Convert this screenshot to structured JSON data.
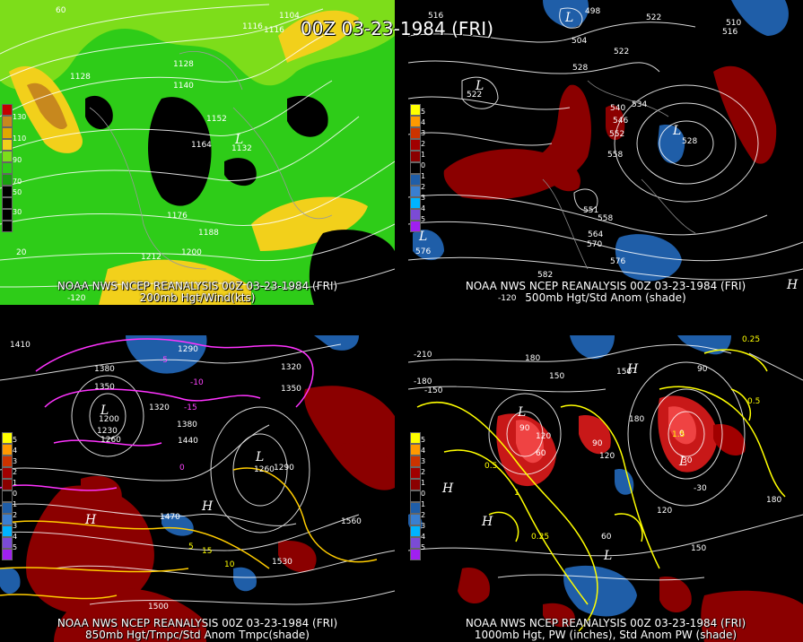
{
  "title": "00Z 03-23-1984 (FRI)",
  "panels": {
    "top_left": {
      "caption_line1": "NOAA NWS NCEP REANALYSIS 00Z 03-23-1984 (FRI)",
      "caption_line2": "200mb Hgt/Wind(kts)",
      "legend": [
        "130",
        "110",
        "90",
        "70",
        "50",
        "30"
      ],
      "contour_labels": [
        "1104",
        "1116",
        "1116",
        "1128",
        "1128",
        "1140",
        "1152",
        "1164",
        "1176",
        "1188",
        "1200",
        "1212",
        "1132"
      ],
      "axis_labels": [
        "60",
        "-120",
        "20"
      ],
      "colors": {
        "wind_low": "#2ecc18",
        "wind_mid": "#7ddd1a",
        "wind_high": "#f2d01b",
        "wind_max": "#c7881e"
      }
    },
    "top_right": {
      "caption_line1": "NOAA NWS NCEP REANALYSIS 00Z 03-23-1984 (FRI)",
      "caption_line2": "500mb Hgt/Std Anom (shade)",
      "legend": [
        "5",
        "4",
        "3",
        "2",
        "1",
        "0",
        "1",
        "2",
        "3",
        "4",
        "5"
      ],
      "contour_labels": [
        "516",
        "498",
        "504",
        "522",
        "510",
        "516",
        "522",
        "528",
        "534",
        "540",
        "546",
        "552",
        "558",
        "564",
        "570",
        "576",
        "582",
        "576",
        "558",
        "551",
        "528",
        "522"
      ],
      "lows": [
        "L",
        "L",
        "L",
        "L"
      ],
      "highs": [
        "H"
      ],
      "axis_labels": [
        "-120"
      ],
      "colors": {
        "pos_anom": "#8b0000",
        "neg_anom": "#1f5ea8"
      }
    },
    "bottom_left": {
      "caption_line1": "NOAA NWS NCEP REANALYSIS 00Z 03-23-1984 (FRI)",
      "caption_line2": "850mb Hgt/Tmpc/Std Anom Tmpc(shade)",
      "legend": [
        "5",
        "4",
        "3",
        "2",
        "1",
        "0",
        "1",
        "2",
        "3",
        "4",
        "5"
      ],
      "contour_labels": [
        "1410",
        "1380",
        "1350",
        "1320",
        "1290",
        "1260",
        "1230",
        "1200",
        "1440",
        "1470",
        "1500",
        "1530",
        "1560",
        "1380",
        "1350",
        "1320",
        "1290",
        "1260"
      ],
      "temp_labels": [
        "-15",
        "-10",
        "-5",
        "0",
        "5",
        "10",
        "15"
      ],
      "lows": [
        "L",
        "L"
      ],
      "highs": [
        "H",
        "H"
      ],
      "colors": {
        "isotherm_cold": "#ff33ff",
        "isotherm_warm": "#ffcc00"
      }
    },
    "bottom_right": {
      "caption_line1": "NOAA NWS NCEP REANALYSIS 00Z 03-23-1984 (FRI)",
      "caption_line2": "1000mb Hgt, PW (inches), Std Anom PW (shade)",
      "legend": [
        "5",
        "4",
        "3",
        "2",
        "1",
        "0",
        "1",
        "2",
        "3",
        "4",
        "5"
      ],
      "contour_labels": [
        "-210",
        "-180",
        "-150",
        "180",
        "150",
        "120",
        "90",
        "60",
        "30",
        "0",
        "-30",
        "180",
        "150",
        "120",
        "90",
        "150",
        "180",
        "120",
        "60",
        "90"
      ],
      "pw_labels": [
        "0.25",
        "0.5",
        "1",
        "1.5",
        "0.5",
        "0.25"
      ],
      "lows": [
        "L",
        "L",
        "L"
      ],
      "highs": [
        "H",
        "H",
        "H"
      ],
      "colors": {
        "pw_line": "#ffff00"
      }
    }
  }
}
